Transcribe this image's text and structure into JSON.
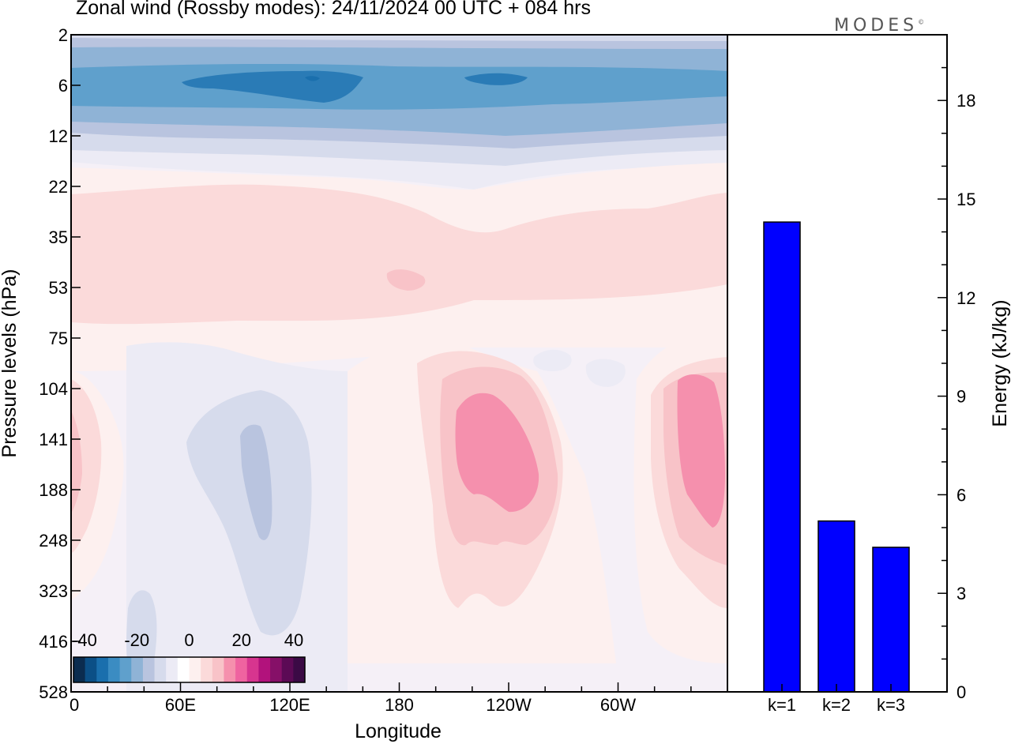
{
  "title": "Zonal wind (Rossby modes):  24/11/2024  00 UTC  + 084 hrs",
  "logo": "MODES",
  "logo_mark": "©",
  "colors": {
    "blue_dark": "#2a7bb6",
    "blue_mid": "#5fa0cc",
    "blue_light": "#8fb3d6",
    "lav_1": "#b9c4df",
    "lav_2": "#d6dbec",
    "lav_3": "#ecebf5",
    "pink_0": "#fdf0ef",
    "pink_1": "#fbdada",
    "pink_2": "#f8c3c8",
    "pink_3": "#f590ad",
    "bar": "#0000ff"
  },
  "chart_data": [
    {
      "type": "heatmap",
      "description_variable": "Zonal wind",
      "xlabel": "Longitude",
      "ylabel": "Pressure levels (hPa)",
      "x_ticks": [
        "0",
        "60E",
        "120E",
        "180",
        "120W",
        "60W"
      ],
      "y_ticks": [
        "2",
        "6",
        "12",
        "22",
        "35",
        "53",
        "75",
        "104",
        "141",
        "188",
        "248",
        "323",
        "416",
        "528"
      ],
      "colorbar": {
        "tick_labels": [
          "-40",
          "-20",
          "0",
          "20",
          "40"
        ],
        "colors": [
          "#0b2c4f",
          "#0b4f86",
          "#1a6fad",
          "#3b8cc2",
          "#5fa0cc",
          "#8fb3d6",
          "#b9c4df",
          "#d6dbec",
          "#ecebf5",
          "#ffffff",
          "#fdf0ef",
          "#fbdada",
          "#f8c3c8",
          "#f590ad",
          "#ef63a0",
          "#d7358f",
          "#b2127c",
          "#861068",
          "#5c0a55",
          "#3b0a45"
        ]
      }
    },
    {
      "type": "bar",
      "categories": [
        "k=1",
        "k=2",
        "k=3"
      ],
      "values": [
        14.3,
        5.2,
        4.4
      ],
      "ylabel": "Energy (kJ/kg)",
      "y_ticks": [
        "0",
        "3",
        "6",
        "9",
        "12",
        "15",
        "18"
      ],
      "ylim": [
        0,
        20
      ]
    }
  ]
}
